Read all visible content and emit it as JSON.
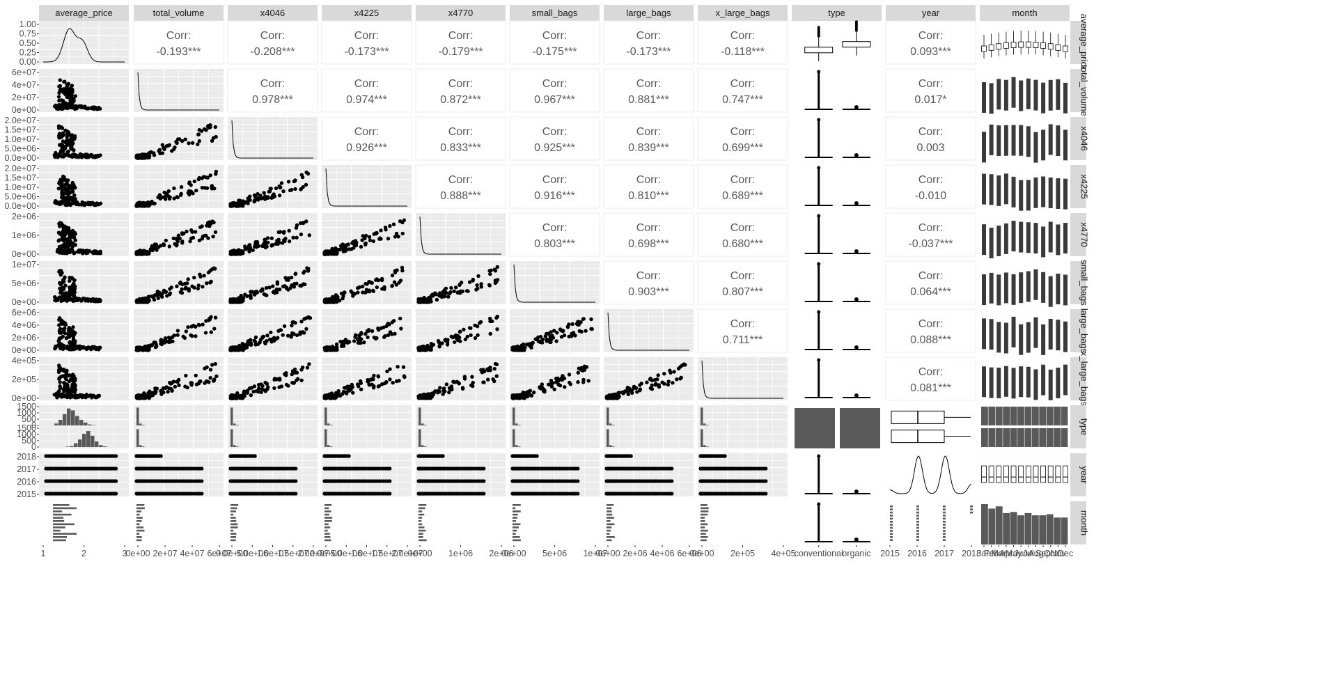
{
  "chart_data": {
    "type": "scatter-matrix",
    "variables": [
      "average_price",
      "total_volume",
      "x4046",
      "x4225",
      "x4770",
      "small_bags",
      "large_bags",
      "x_large_bags",
      "type",
      "year",
      "month"
    ],
    "row_strip_labels": [
      "average_price",
      "total_volume",
      "x4046",
      "x4225",
      "x4770",
      "small_bags",
      "large_bags",
      "x_large_bags",
      "type",
      "year",
      "month"
    ],
    "corr_label": "Corr:",
    "correlations": [
      {
        "row": 0,
        "col": 1,
        "value": "-0.193***"
      },
      {
        "row": 0,
        "col": 2,
        "value": "-0.208***"
      },
      {
        "row": 0,
        "col": 3,
        "value": "-0.173***"
      },
      {
        "row": 0,
        "col": 4,
        "value": "-0.179***"
      },
      {
        "row": 0,
        "col": 5,
        "value": "-0.175***"
      },
      {
        "row": 0,
        "col": 6,
        "value": "-0.173***"
      },
      {
        "row": 0,
        "col": 7,
        "value": "-0.118***"
      },
      {
        "row": 0,
        "col": 9,
        "value": "0.093***"
      },
      {
        "row": 1,
        "col": 2,
        "value": "0.978***"
      },
      {
        "row": 1,
        "col": 3,
        "value": "0.974***"
      },
      {
        "row": 1,
        "col": 4,
        "value": "0.872***"
      },
      {
        "row": 1,
        "col": 5,
        "value": "0.967***"
      },
      {
        "row": 1,
        "col": 6,
        "value": "0.881***"
      },
      {
        "row": 1,
        "col": 7,
        "value": "0.747***"
      },
      {
        "row": 1,
        "col": 9,
        "value": "0.017*"
      },
      {
        "row": 2,
        "col": 3,
        "value": "0.926***"
      },
      {
        "row": 2,
        "col": 4,
        "value": "0.833***"
      },
      {
        "row": 2,
        "col": 5,
        "value": "0.925***"
      },
      {
        "row": 2,
        "col": 6,
        "value": "0.839***"
      },
      {
        "row": 2,
        "col": 7,
        "value": "0.699***"
      },
      {
        "row": 2,
        "col": 9,
        "value": "0.003"
      },
      {
        "row": 3,
        "col": 4,
        "value": "0.888***"
      },
      {
        "row": 3,
        "col": 5,
        "value": "0.916***"
      },
      {
        "row": 3,
        "col": 6,
        "value": "0.810***"
      },
      {
        "row": 3,
        "col": 7,
        "value": "0.689***"
      },
      {
        "row": 3,
        "col": 9,
        "value": "-0.010"
      },
      {
        "row": 4,
        "col": 5,
        "value": "0.803***"
      },
      {
        "row": 4,
        "col": 6,
        "value": "0.698***"
      },
      {
        "row": 4,
        "col": 7,
        "value": "0.680***"
      },
      {
        "row": 4,
        "col": 9,
        "value": "-0.037***"
      },
      {
        "row": 5,
        "col": 6,
        "value": "0.903***"
      },
      {
        "row": 5,
        "col": 7,
        "value": "0.807***"
      },
      {
        "row": 5,
        "col": 9,
        "value": "0.064***"
      },
      {
        "row": 6,
        "col": 7,
        "value": "0.711***"
      },
      {
        "row": 6,
        "col": 9,
        "value": "0.088***"
      },
      {
        "row": 7,
        "col": 9,
        "value": "0.081***"
      }
    ],
    "y_ticks": [
      [
        "0.00",
        "0.25",
        "0.50",
        "0.75",
        "1.00"
      ],
      [
        "0e+00",
        "2e+07",
        "4e+07",
        "6e+07"
      ],
      [
        "0.0e+00",
        "5.0e+06",
        "1.0e+07",
        "1.5e+07",
        "2.0e+07"
      ],
      [
        "0.0e+00",
        "5.0e+06",
        "1.0e+07",
        "1.5e+07",
        "2.0e+07"
      ],
      [
        "0e+00",
        "1e+06",
        "2e+06"
      ],
      [
        "0e+00",
        "5e+06",
        "1e+07"
      ],
      [
        "0e+00",
        "2e+06",
        "4e+06",
        "6e+06"
      ],
      [
        "0e+00",
        "2e+05",
        "4e+05"
      ],
      [
        "0",
        "500",
        "1000",
        "1500",
        "0",
        "500",
        "1000",
        "1500"
      ],
      [
        "2015",
        "2016",
        "2017",
        "2018"
      ],
      []
    ],
    "x_ticks": [
      [
        "1",
        "2",
        "3"
      ],
      [
        "0e+00",
        "2e+07",
        "4e+07",
        "6e+07"
      ],
      [
        "0.0e+00",
        "5.0e+06",
        "1.0e+07",
        "1.5e+07",
        "2.0e+07"
      ],
      [
        "0.0e+00",
        "5.0e+06",
        "1.0e+07",
        "1.5e+07",
        "2.0e+07"
      ],
      [
        "0e+00",
        "1e+06",
        "2e+06"
      ],
      [
        "0e+00",
        "5e+06",
        "1e+07"
      ],
      [
        "0e+00",
        "2e+06",
        "4e+06",
        "6e+06"
      ],
      [
        "0e+00",
        "2e+05",
        "4e+05"
      ],
      [
        "conventional",
        "organic"
      ],
      [
        "2015",
        "2016",
        "2017",
        "2018"
      ],
      [
        "Jan",
        "Feb",
        "Mar",
        "Apr",
        "May",
        "Jun",
        "Jul",
        "Aug",
        "Sep",
        "Oct",
        "Nov",
        "Dec"
      ]
    ],
    "type_categories": [
      "conventional",
      "organic"
    ],
    "year_values": [
      2015,
      2016,
      2017,
      2018
    ],
    "year_counts": [
      5615,
      5616,
      5722,
      1296
    ],
    "month_categories": [
      "Jan",
      "Feb",
      "Mar",
      "Apr",
      "May",
      "Jun",
      "Jul",
      "Aug",
      "Sep",
      "Oct",
      "Nov",
      "Dec"
    ],
    "month_counts": [
      1944,
      1728,
      1836,
      1512,
      1566,
      1404,
      1512,
      1404,
      1404,
      1458,
      1296,
      1296
    ],
    "type_counts": [
      9126,
      9123
    ],
    "panel_background": "#ebebeb",
    "strip_background": "#d9d9d9",
    "grid_color": "#ffffff",
    "mark_color": "#000000",
    "bar_color": "#595959"
  }
}
